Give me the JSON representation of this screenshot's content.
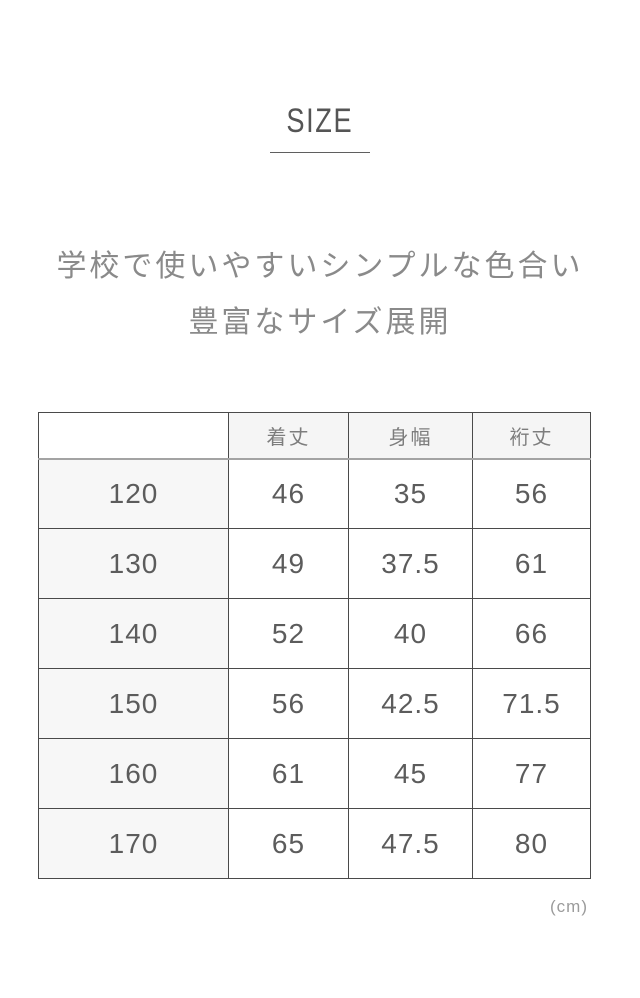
{
  "page": {
    "title": "SIZE",
    "subtitle_line1": "学校で使いやすいシンプルな色合い",
    "subtitle_line2": "豊富なサイズ展開",
    "unit_note": "(cm)"
  },
  "table": {
    "columns": [
      "着丈",
      "身幅",
      "裄丈"
    ],
    "rows": [
      {
        "size": "120",
        "values": [
          "46",
          "35",
          "56"
        ]
      },
      {
        "size": "130",
        "values": [
          "49",
          "37.5",
          "61"
        ]
      },
      {
        "size": "140",
        "values": [
          "52",
          "40",
          "66"
        ]
      },
      {
        "size": "150",
        "values": [
          "56",
          "42.5",
          "71.5"
        ]
      },
      {
        "size": "160",
        "values": [
          "61",
          "45",
          "77"
        ]
      },
      {
        "size": "170",
        "values": [
          "65",
          "47.5",
          "80"
        ]
      }
    ]
  },
  "colors": {
    "background": "#ffffff",
    "title_text": "#555555",
    "subtitle_text": "#8a8a8a",
    "table_border": "#4a4a4a",
    "header_divider": "#a3a3a3",
    "header_fill": "#f5f5f5",
    "size_column_fill": "#f7f7f7",
    "cell_text": "#5c5c5c",
    "unit_text": "#9b9b9b"
  }
}
